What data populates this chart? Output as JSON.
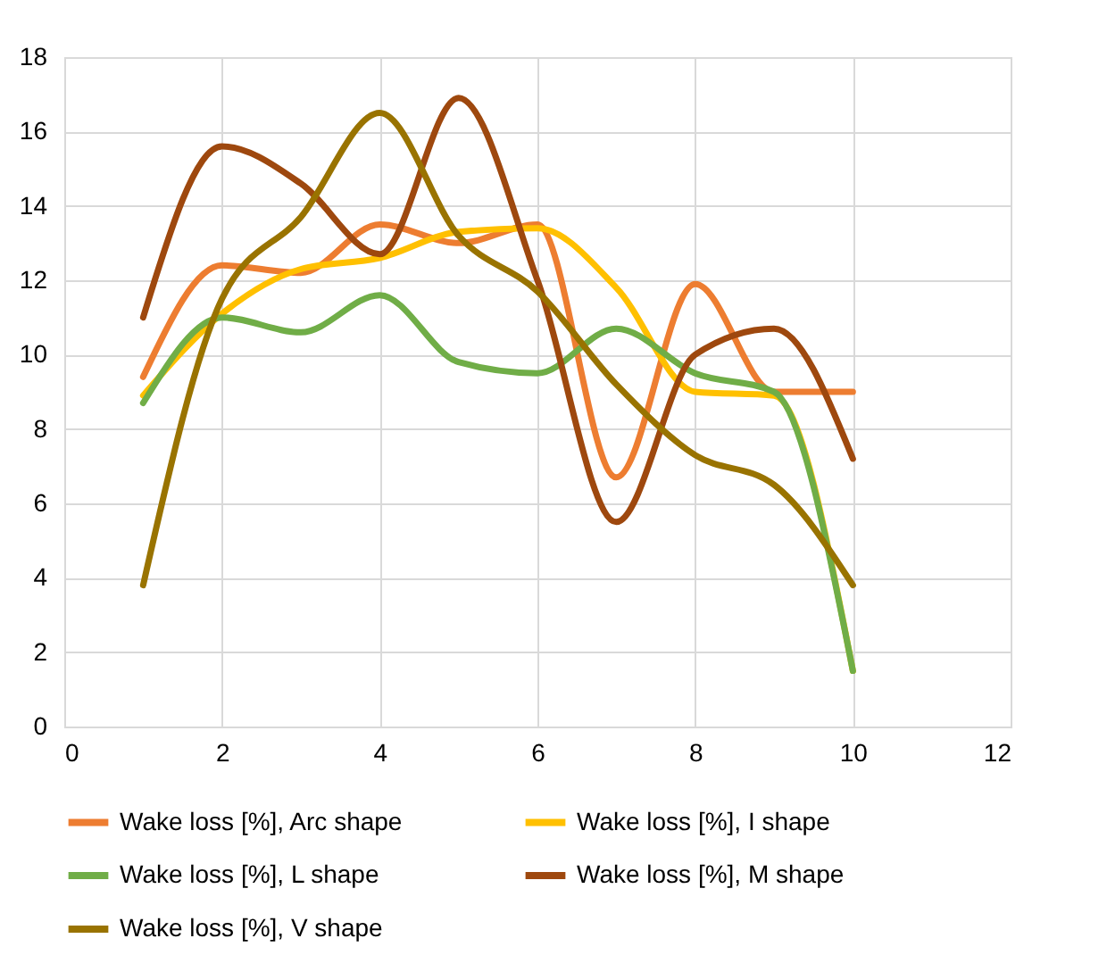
{
  "chart_data": {
    "type": "line",
    "x": [
      1,
      2,
      3,
      4,
      5,
      6,
      7,
      8,
      9,
      10
    ],
    "series": [
      {
        "name": "Wake loss [%], Arc shape",
        "color": "#ed7d31",
        "values": [
          9.4,
          12.4,
          12.2,
          13.5,
          13.0,
          13.5,
          6.7,
          11.9,
          9.0,
          9.0
        ]
      },
      {
        "name": "Wake loss [%], I shape",
        "color": "#ffc000",
        "values": [
          8.9,
          11.1,
          12.3,
          12.6,
          13.3,
          13.4,
          11.8,
          9.0,
          8.9,
          1.5
        ]
      },
      {
        "name": "Wake loss [%], L shape",
        "color": "#70ad47",
        "values": [
          8.7,
          11.0,
          10.6,
          11.6,
          9.8,
          9.5,
          10.7,
          9.5,
          9.0,
          1.5
        ]
      },
      {
        "name": "Wake loss [%], M shape",
        "color": "#9e480e",
        "values": [
          11.0,
          15.6,
          14.6,
          12.7,
          16.9,
          12.0,
          5.5,
          10.0,
          10.7,
          7.2
        ]
      },
      {
        "name": "Wake loss [%], V shape",
        "color": "#997300",
        "values": [
          3.8,
          11.5,
          13.7,
          16.5,
          13.2,
          11.7,
          9.2,
          7.3,
          6.5,
          3.8
        ]
      }
    ],
    "xlim": [
      0,
      12
    ],
    "xticks": [
      0,
      2,
      4,
      6,
      8,
      10,
      12
    ],
    "ylim": [
      0,
      18
    ],
    "yticks": [
      0,
      2,
      4,
      6,
      8,
      10,
      12,
      14,
      16,
      18
    ],
    "grid": true,
    "legend": "bottom",
    "marker": "none",
    "line_style": "solid"
  }
}
